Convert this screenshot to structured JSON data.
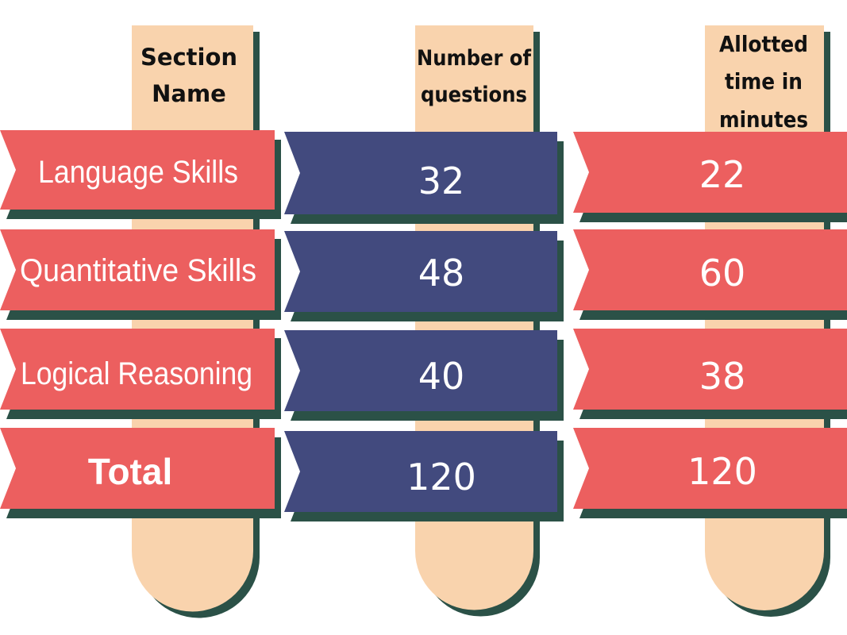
{
  "headers": {
    "section_name": [
      "Section",
      "Name"
    ],
    "num_questions": [
      "Number of",
      "questions"
    ],
    "allotted_time": [
      "Allotted",
      "time in",
      "minutes"
    ]
  },
  "rows": [
    {
      "section": "Language Skills",
      "questions": "32",
      "minutes": "22"
    },
    {
      "section": "Quantitative Skills",
      "questions": "48",
      "minutes": "60"
    },
    {
      "section": "Logical Reasoning",
      "questions": "40",
      "minutes": "38"
    },
    {
      "section": "Total",
      "questions": "120",
      "minutes": "120"
    }
  ],
  "colors": {
    "stick": "#f9d3ad",
    "shadow": "#2b5147",
    "ribbon_red": "#ec5f5f",
    "ribbon_blue": "#424a7e",
    "header_text": "#111111",
    "cell_text": "#ffffff"
  }
}
